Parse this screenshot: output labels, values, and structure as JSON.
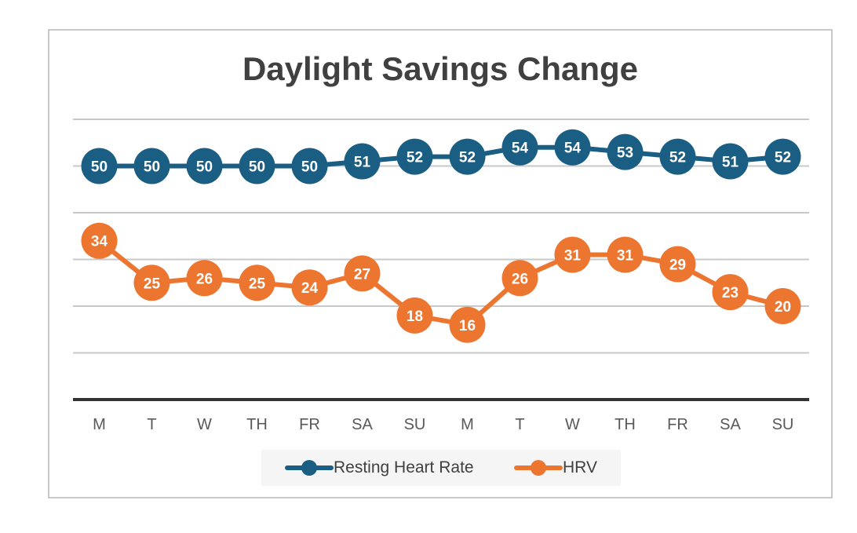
{
  "chart_data": {
    "type": "line",
    "title": "Daylight Savings Change",
    "categories": [
      "M",
      "T",
      "W",
      "TH",
      "FR",
      "SA",
      "SU",
      "M",
      "T",
      "W",
      "TH",
      "FR",
      "SA",
      "SU"
    ],
    "series": [
      {
        "name": "Resting Heart Rate",
        "color": "#1b5e84",
        "values": [
          50,
          50,
          50,
          50,
          50,
          51,
          52,
          52,
          54,
          54,
          53,
          52,
          51,
          52
        ]
      },
      {
        "name": "HRV",
        "color": "#ec7530",
        "values": [
          34,
          25,
          26,
          25,
          24,
          27,
          18,
          16,
          26,
          31,
          31,
          29,
          23,
          20
        ]
      }
    ],
    "ylim": [
      0,
      60
    ],
    "grid": true,
    "axis_labels_visible": false,
    "legend_position": "bottom",
    "data_labels": true
  }
}
